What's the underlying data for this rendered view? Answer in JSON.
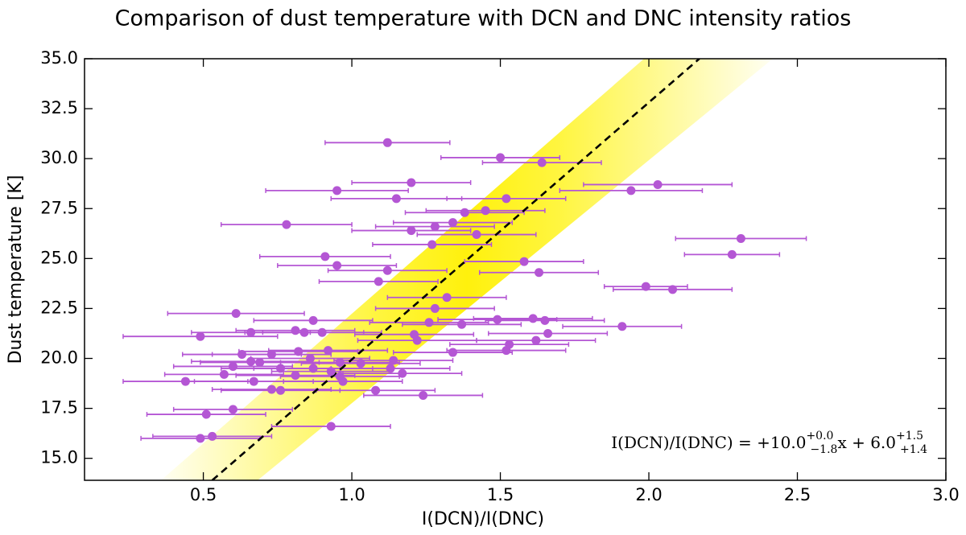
{
  "chart_data": {
    "type": "scatter",
    "title": "Comparison of dust temperature with DCN and DNC intensity ratios",
    "x_label": "I(DCN)/I(DNC)",
    "y_label": "Dust temperature [K]",
    "color": "#b456d4",
    "xlim": [
      0.1,
      3.0
    ],
    "ylim": [
      13.9,
      35.0
    ],
    "xticks": [
      0.5,
      {
        "value": 1,
        "label": "1.0"
      },
      1.5,
      {
        "value": 2,
        "label": "2.0"
      },
      2.5,
      {
        "value": 3,
        "label": "3.0"
      }
    ],
    "yticks": [
      {
        "value": 15,
        "label": "15.0"
      },
      17.5,
      {
        "value": 20,
        "label": "20.0"
      },
      22.5,
      {
        "value": 25,
        "label": "25.0"
      },
      27.5,
      {
        "value": 30,
        "label": "30.0"
      },
      32.5,
      {
        "value": 35,
        "label": "35.0"
      }
    ],
    "x": [
      1.12,
      1.5,
      1.64,
      1.2,
      0.95,
      1.15,
      1.52,
      2.03,
      1.94,
      0.78,
      1.38,
      1.45,
      1.34,
      1.28,
      1.2,
      1.42,
      1.27,
      2.31,
      2.28,
      0.91,
      0.95,
      1.58,
      1.12,
      1.63,
      1.09,
      1.99,
      2.08,
      1.32,
      0.61,
      1.28,
      1.49,
      1.61,
      1.65,
      0.87,
      1.26,
      1.37,
      1.91,
      0.49,
      0.81,
      0.84,
      0.9,
      0.66,
      1.21,
      1.22,
      1.66,
      1.62,
      1.53,
      1.52,
      1.34,
      0.63,
      0.73,
      0.82,
      0.92,
      0.86,
      1.14,
      0.66,
      0.69,
      0.6,
      0.96,
      1.03,
      1.13,
      0.57,
      0.76,
      0.87,
      0.93,
      1.17,
      0.81,
      0.96,
      0.67,
      0.44,
      0.97,
      0.73,
      0.76,
      1.08,
      1.24,
      0.6,
      0.51,
      0.93,
      0.53,
      0.49
    ],
    "values": [
      30.8,
      30.05,
      29.8,
      28.8,
      28.4,
      28.0,
      28.0,
      28.7,
      28.4,
      26.7,
      27.3,
      27.4,
      26.8,
      26.6,
      26.4,
      26.2,
      25.7,
      26.0,
      25.2,
      25.1,
      24.65,
      24.85,
      24.4,
      24.3,
      23.85,
      23.6,
      23.45,
      23.05,
      22.25,
      22.5,
      21.95,
      22.0,
      21.9,
      21.9,
      21.8,
      21.7,
      21.6,
      21.1,
      21.4,
      21.3,
      21.3,
      21.3,
      21.2,
      20.9,
      21.25,
      20.9,
      20.7,
      20.4,
      20.3,
      20.2,
      20.2,
      20.35,
      20.4,
      20.0,
      19.9,
      19.85,
      19.8,
      19.6,
      19.8,
      19.75,
      19.5,
      19.2,
      19.5,
      19.5,
      19.35,
      19.25,
      19.15,
      19.1,
      18.85,
      18.85,
      18.85,
      18.45,
      18.4,
      18.4,
      18.15,
      17.45,
      17.2,
      16.6,
      16.1,
      16.0
    ],
    "xerr": [
      0.21,
      0.2,
      0.2,
      0.2,
      0.24,
      0.22,
      0.2,
      0.25,
      0.24,
      0.22,
      0.2,
      0.2,
      0.2,
      0.2,
      0.2,
      0.2,
      0.2,
      0.22,
      0.16,
      0.22,
      0.2,
      0.2,
      0.2,
      0.2,
      0.2,
      0.14,
      0.2,
      0.2,
      0.23,
      0.2,
      0.2,
      0.2,
      0.2,
      0.2,
      0.2,
      0.2,
      0.2,
      0.26,
      0.2,
      0.2,
      0.2,
      0.2,
      0.2,
      0.2,
      0.2,
      0.2,
      0.2,
      0.2,
      0.2,
      0.2,
      0.2,
      0.2,
      0.2,
      0.2,
      0.2,
      0.2,
      0.2,
      0.2,
      0.2,
      0.2,
      0.2,
      0.2,
      0.2,
      0.2,
      0.2,
      0.2,
      0.2,
      0.2,
      0.2,
      0.21,
      0.2,
      0.2,
      0.2,
      0.2,
      0.2,
      0.2,
      0.2,
      0.2,
      0.2,
      0.2
    ],
    "fit_line": {
      "x": [
        0.53,
        2.17
      ],
      "y": [
        13.9,
        35.0
      ],
      "color": "#000000"
    },
    "annotation": {
      "lhs": "I(DCN)/I(DNC) = +10.0",
      "sup1": "+0.0",
      "sub1": "−1.8",
      "mid": "x + 6.0",
      "sup2": "+1.5",
      "sub2": "+1.4"
    }
  }
}
